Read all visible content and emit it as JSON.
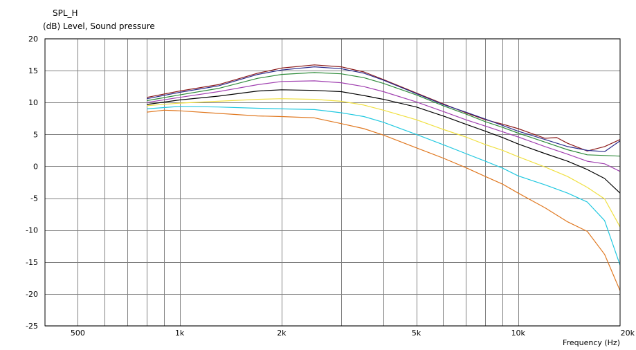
{
  "header": {
    "title": "SPL_H",
    "subtitle": "(dB)  Level, Sound pressure"
  },
  "chart_data": {
    "type": "line",
    "title": "SPL_H",
    "ylabel": "(dB)  Level, Sound pressure",
    "xlabel": "Frequency  (Hz)",
    "xscale": "log",
    "xlim": [
      400,
      20000
    ],
    "ylim": [
      -25,
      20
    ],
    "x_tick_labels": [
      {
        "value": 500,
        "label": "500"
      },
      {
        "value": 1000,
        "label": "1k"
      },
      {
        "value": 2000,
        "label": "2k"
      },
      {
        "value": 5000,
        "label": "5k"
      },
      {
        "value": 10000,
        "label": "10k"
      },
      {
        "value": 20000,
        "label": "20k"
      }
    ],
    "x_minor_grid": [
      500,
      600,
      700,
      800,
      900,
      1000,
      2000,
      3000,
      4000,
      5000,
      6000,
      7000,
      8000,
      9000,
      10000
    ],
    "y_ticks": [
      20,
      15,
      10,
      5,
      0,
      -5,
      -10,
      -15,
      -20,
      -25
    ],
    "grid": true,
    "series": [
      {
        "color": "#8b1a1a",
        "points": [
          [
            800,
            10.8
          ],
          [
            1000,
            11.8
          ],
          [
            1300,
            12.8
          ],
          [
            1700,
            14.6
          ],
          [
            2000,
            15.4
          ],
          [
            2500,
            15.9
          ],
          [
            3000,
            15.6
          ],
          [
            3500,
            14.8
          ],
          [
            4000,
            13.6
          ],
          [
            5000,
            11.5
          ],
          [
            6000,
            9.8
          ],
          [
            7000,
            8.4
          ],
          [
            8000,
            7.3
          ],
          [
            9000,
            6.6
          ],
          [
            10000,
            5.9
          ],
          [
            12000,
            4.4
          ],
          [
            13000,
            4.5
          ],
          [
            14000,
            3.6
          ],
          [
            16000,
            2.4
          ],
          [
            18000,
            3.1
          ],
          [
            20000,
            4.2
          ]
        ]
      },
      {
        "color": "#2b2b8b",
        "points": [
          [
            800,
            10.6
          ],
          [
            1000,
            11.6
          ],
          [
            1300,
            12.6
          ],
          [
            1700,
            14.4
          ],
          [
            2000,
            15.1
          ],
          [
            2500,
            15.6
          ],
          [
            3000,
            15.3
          ],
          [
            3500,
            14.6
          ],
          [
            4000,
            13.5
          ],
          [
            5000,
            11.4
          ],
          [
            6000,
            9.7
          ],
          [
            7000,
            8.5
          ],
          [
            8000,
            7.4
          ],
          [
            9000,
            6.4
          ],
          [
            10000,
            5.5
          ],
          [
            12000,
            4.2
          ],
          [
            14000,
            3.1
          ],
          [
            16000,
            2.5
          ],
          [
            18000,
            2.3
          ],
          [
            20000,
            4.0
          ]
        ]
      },
      {
        "color": "#2e8b3a",
        "points": [
          [
            800,
            10.3
          ],
          [
            1000,
            11.2
          ],
          [
            1300,
            12.2
          ],
          [
            1700,
            13.8
          ],
          [
            2000,
            14.4
          ],
          [
            2500,
            14.7
          ],
          [
            3000,
            14.5
          ],
          [
            3500,
            13.9
          ],
          [
            4000,
            13.0
          ],
          [
            5000,
            11.2
          ],
          [
            6000,
            9.5
          ],
          [
            7000,
            8.2
          ],
          [
            8000,
            7.0
          ],
          [
            9000,
            6.1
          ],
          [
            10000,
            5.2
          ],
          [
            12000,
            3.8
          ],
          [
            14000,
            2.6
          ],
          [
            16000,
            1.8
          ],
          [
            20000,
            1.6
          ]
        ]
      },
      {
        "color": "#a040b0",
        "points": [
          [
            800,
            10.0
          ],
          [
            1000,
            10.8
          ],
          [
            1300,
            11.7
          ],
          [
            1700,
            12.8
          ],
          [
            2000,
            13.3
          ],
          [
            2500,
            13.4
          ],
          [
            3000,
            13.1
          ],
          [
            3500,
            12.5
          ],
          [
            4000,
            11.7
          ],
          [
            5000,
            10.1
          ],
          [
            6000,
            8.6
          ],
          [
            7000,
            7.3
          ],
          [
            8000,
            6.3
          ],
          [
            9000,
            5.4
          ],
          [
            10000,
            4.6
          ],
          [
            12000,
            3.1
          ],
          [
            14000,
            1.9
          ],
          [
            16000,
            0.8
          ],
          [
            18000,
            0.4
          ],
          [
            20000,
            -0.8
          ]
        ]
      },
      {
        "color": "#000000",
        "points": [
          [
            800,
            9.7
          ],
          [
            1000,
            10.4
          ],
          [
            1300,
            11.0
          ],
          [
            1700,
            11.8
          ],
          [
            2000,
            12.0
          ],
          [
            2500,
            11.9
          ],
          [
            3000,
            11.7
          ],
          [
            3500,
            11.1
          ],
          [
            4000,
            10.5
          ],
          [
            5000,
            9.3
          ],
          [
            6000,
            7.9
          ],
          [
            7000,
            6.6
          ],
          [
            8000,
            5.5
          ],
          [
            9000,
            4.5
          ],
          [
            10000,
            3.5
          ],
          [
            12000,
            2.0
          ],
          [
            14000,
            0.8
          ],
          [
            16000,
            -0.5
          ],
          [
            18000,
            -1.9
          ],
          [
            20000,
            -4.2
          ]
        ]
      },
      {
        "color": "#f0e040",
        "points": [
          [
            800,
            9.5
          ],
          [
            1000,
            9.9
          ],
          [
            1300,
            10.2
          ],
          [
            1700,
            10.5
          ],
          [
            2000,
            10.6
          ],
          [
            2500,
            10.5
          ],
          [
            3000,
            10.2
          ],
          [
            3500,
            9.6
          ],
          [
            4000,
            8.8
          ],
          [
            5000,
            7.3
          ],
          [
            6000,
            5.8
          ],
          [
            7000,
            4.6
          ],
          [
            8000,
            3.4
          ],
          [
            9000,
            2.5
          ],
          [
            10000,
            1.5
          ],
          [
            12000,
            -0.1
          ],
          [
            14000,
            -1.6
          ],
          [
            16000,
            -3.3
          ],
          [
            18000,
            -5.1
          ],
          [
            20000,
            -9.5
          ]
        ]
      },
      {
        "color": "#20c8e0",
        "points": [
          [
            800,
            9.0
          ],
          [
            1000,
            9.4
          ],
          [
            1300,
            9.3
          ],
          [
            1700,
            9.1
          ],
          [
            2000,
            9.0
          ],
          [
            2500,
            8.9
          ],
          [
            3000,
            8.4
          ],
          [
            3500,
            7.8
          ],
          [
            4000,
            6.9
          ],
          [
            5000,
            5.0
          ],
          [
            6000,
            3.4
          ],
          [
            7000,
            2.0
          ],
          [
            8000,
            0.8
          ],
          [
            9000,
            -0.3
          ],
          [
            10000,
            -1.5
          ],
          [
            12000,
            -2.9
          ],
          [
            14000,
            -4.2
          ],
          [
            16000,
            -5.6
          ],
          [
            18000,
            -8.5
          ],
          [
            20000,
            -15.5
          ]
        ]
      },
      {
        "color": "#e07820",
        "points": [
          [
            800,
            8.5
          ],
          [
            900,
            8.8
          ],
          [
            1000,
            8.7
          ],
          [
            1300,
            8.3
          ],
          [
            1700,
            7.9
          ],
          [
            2000,
            7.8
          ],
          [
            2500,
            7.6
          ],
          [
            3000,
            6.7
          ],
          [
            3500,
            5.9
          ],
          [
            4000,
            4.9
          ],
          [
            5000,
            2.9
          ],
          [
            6000,
            1.3
          ],
          [
            7000,
            -0.2
          ],
          [
            8000,
            -1.6
          ],
          [
            9000,
            -2.8
          ],
          [
            10000,
            -4.2
          ],
          [
            12000,
            -6.5
          ],
          [
            14000,
            -8.7
          ],
          [
            16000,
            -10.2
          ],
          [
            18000,
            -13.8
          ],
          [
            20000,
            -19.5
          ]
        ]
      }
    ]
  }
}
